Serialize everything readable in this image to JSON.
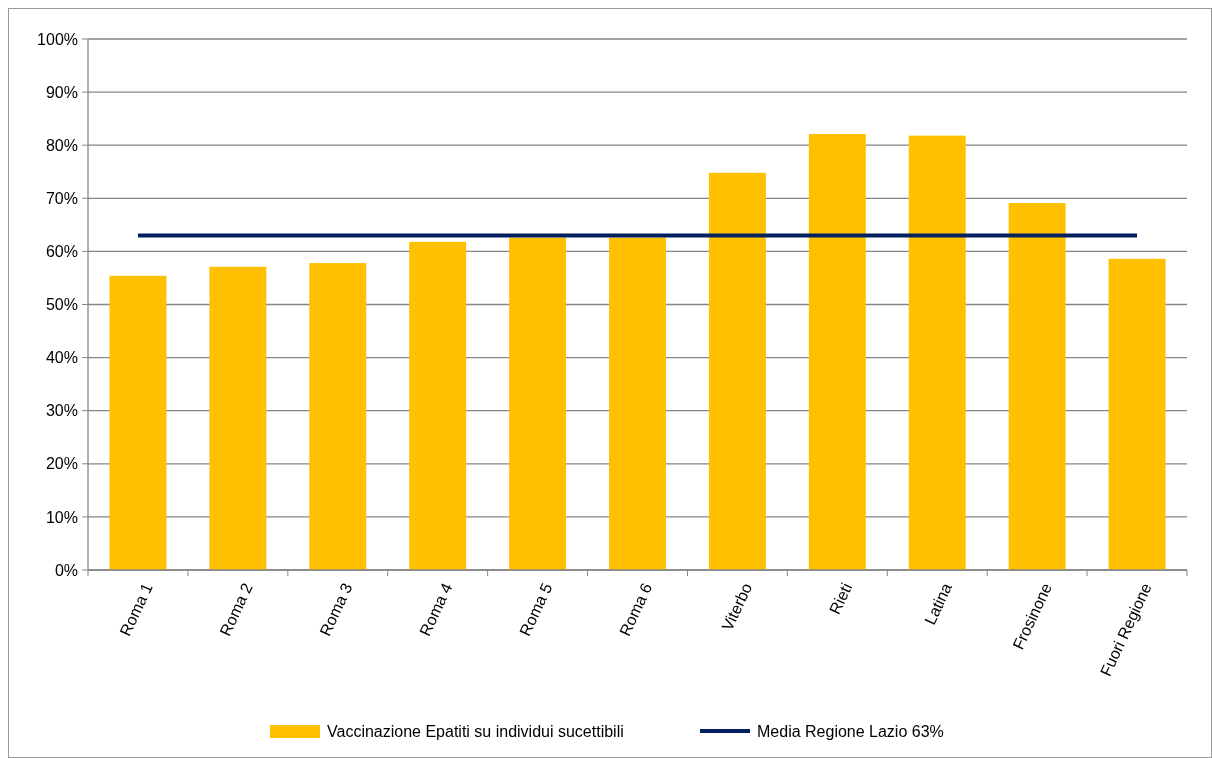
{
  "chart_data": {
    "type": "bar",
    "categories": [
      "Roma 1",
      "Roma 2",
      "Roma 3",
      "Roma 4",
      "Roma 5",
      "Roma 6",
      "Viterbo",
      "Rieti",
      "Latina",
      "Frosinone",
      "Fuori Regione"
    ],
    "series": [
      {
        "name": "Vaccinazione Epatiti su individui sucettibili",
        "color": "#ffc000",
        "values": [
          55.4,
          57.1,
          57.8,
          61.8,
          62.6,
          62.6,
          74.8,
          82.1,
          81.8,
          69.1,
          58.6
        ]
      },
      {
        "name": "Media Regione Lazio 63%",
        "type": "line",
        "color": "#002060",
        "values": [
          63,
          63,
          63,
          63,
          63,
          63,
          63,
          63,
          63,
          63,
          63
        ]
      }
    ],
    "ylim": [
      0,
      100
    ],
    "yticks": [
      {
        "value": 0,
        "label": "0%"
      },
      {
        "value": 10,
        "label": "10%"
      },
      {
        "value": 20,
        "label": "20%"
      },
      {
        "value": 30,
        "label": "30%"
      },
      {
        "value": 40,
        "label": "40%"
      },
      {
        "value": 50,
        "label": "50%"
      },
      {
        "value": 60,
        "label": "60%"
      },
      {
        "value": 70,
        "label": "70%"
      },
      {
        "value": 80,
        "label": "80%"
      },
      {
        "value": 90,
        "label": "90%"
      },
      {
        "value": 100,
        "label": "100%"
      }
    ],
    "grid": "y",
    "legend": "bottom",
    "marker": "none"
  }
}
